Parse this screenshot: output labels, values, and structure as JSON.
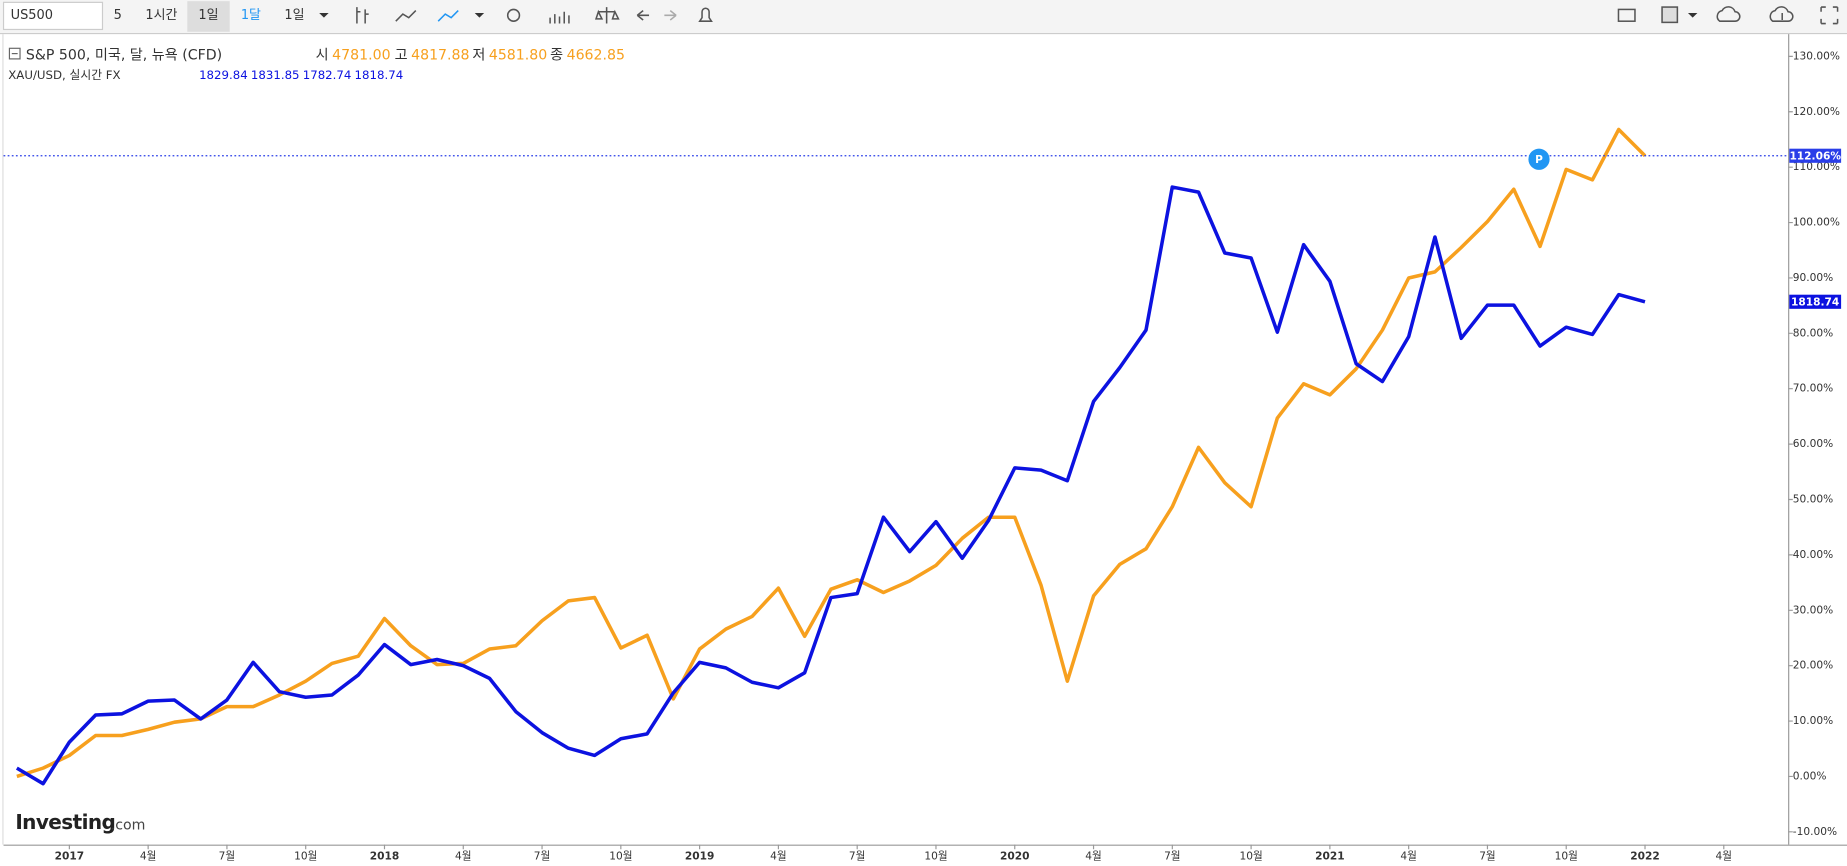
{
  "toolbar": {
    "symbol": "US500",
    "items": [
      "5",
      "1시간",
      "1일",
      "1달",
      "1일"
    ]
  },
  "legend": {
    "sp500": {
      "name": "S&P 500, 미국, 달, 뉴욕 (CFD)",
      "open_label": "시",
      "open": "4781.00",
      "high_label": "고",
      "high": "4817.88",
      "low_label": "저",
      "low": "4581.80",
      "close_label": "종",
      "close": "4662.85"
    },
    "gold": {
      "name": "XAU/USD, 실시간 FX",
      "open": "1829.84",
      "high": "1831.85",
      "low": "1782.74",
      "close": "1818.74"
    }
  },
  "logo": {
    "brand": "Investing",
    ".com": ".com"
  },
  "marker": "P",
  "chart_data": {
    "type": "line",
    "x": [
      "2016-11",
      "2016-12",
      "2017-01",
      "2017-02",
      "2017-03",
      "2017-04",
      "2017-05",
      "2017-06",
      "2017-07",
      "2017-08",
      "2017-09",
      "2017-10",
      "2017-11",
      "2017-12",
      "2018-01",
      "2018-02",
      "2018-03",
      "2018-04",
      "2018-05",
      "2018-06",
      "2018-07",
      "2018-08",
      "2018-09",
      "2018-10",
      "2018-11",
      "2018-12",
      "2019-01",
      "2019-02",
      "2019-03",
      "2019-04",
      "2019-05",
      "2019-06",
      "2019-07",
      "2019-08",
      "2019-09",
      "2019-10",
      "2019-11",
      "2019-12",
      "2020-01",
      "2020-02",
      "2020-03",
      "2020-04",
      "2020-05",
      "2020-06",
      "2020-07",
      "2020-08",
      "2020-09",
      "2020-10",
      "2020-11",
      "2020-12",
      "2021-01",
      "2021-02",
      "2021-03",
      "2021-04",
      "2021-05",
      "2021-06",
      "2021-07",
      "2021-08",
      "2021-09",
      "2021-10",
      "2021-11",
      "2021-12",
      "2022-01"
    ],
    "series": [
      {
        "name": "S&P 500",
        "color": "#f7a01e",
        "end_label": "112.06%",
        "values": [
          0,
          1.5,
          3.8,
          7.4,
          7.4,
          8.5,
          9.8,
          10.4,
          12.6,
          12.6,
          14.7,
          17.2,
          20.4,
          21.7,
          28.5,
          23.6,
          20.2,
          20.4,
          23,
          23.6,
          28.1,
          31.7,
          32.3,
          23.2,
          25.5,
          14,
          23,
          26.6,
          28.9,
          34,
          25.3,
          33.8,
          35.5,
          33.2,
          35.3,
          38.1,
          43,
          46.8,
          46.8,
          34.5,
          17.2,
          32.6,
          38.3,
          41.1,
          48.7,
          59.4,
          53,
          48.7,
          64.7,
          70.9,
          68.9,
          73.6,
          80.6,
          90,
          91.1,
          95.5,
          100.2,
          106,
          95.7,
          109.6,
          107.7,
          116.8,
          112.06
        ]
      },
      {
        "name": "XAU/USD",
        "color": "#0c12e0",
        "end_label": "1818.74",
        "values": [
          1.5,
          -1.3,
          6.2,
          11.1,
          11.3,
          13.6,
          13.8,
          10.4,
          13.8,
          20.6,
          15.3,
          14.3,
          14.7,
          18.3,
          23.8,
          20.2,
          21.1,
          20,
          17.7,
          11.7,
          7.9,
          5.1,
          3.8,
          6.8,
          7.7,
          15.1,
          20.6,
          19.6,
          17,
          16,
          18.7,
          32.3,
          33,
          46.8,
          40.6,
          46,
          39.4,
          46.2,
          55.7,
          55.3,
          53.4,
          67.7,
          73.8,
          80.6,
          106.4,
          105.5,
          94.5,
          93.6,
          80.2,
          96,
          89.4,
          74.5,
          71.3,
          79.4,
          97.4,
          79.1,
          85.1,
          85.1,
          77.7,
          81.1,
          79.8,
          87,
          85.7
        ]
      }
    ],
    "xlim": [
      "2016-10",
      "2022-06"
    ],
    "xticks": [
      {
        "value": "2017-01",
        "label": "2017"
      },
      {
        "value": "2017-04",
        "label": "4월"
      },
      {
        "value": "2017-07",
        "label": "7월"
      },
      {
        "value": "2017-10",
        "label": "10월"
      },
      {
        "value": "2018-01",
        "label": "2018"
      },
      {
        "value": "2018-04",
        "label": "4월"
      },
      {
        "value": "2018-07",
        "label": "7월"
      },
      {
        "value": "2018-10",
        "label": "10월"
      },
      {
        "value": "2019-01",
        "label": "2019"
      },
      {
        "value": "2019-04",
        "label": "4월"
      },
      {
        "value": "2019-07",
        "label": "7월"
      },
      {
        "value": "2019-10",
        "label": "10월"
      },
      {
        "value": "2020-01",
        "label": "2020"
      },
      {
        "value": "2020-04",
        "label": "4월"
      },
      {
        "value": "2020-07",
        "label": "7월"
      },
      {
        "value": "2020-10",
        "label": "10월"
      },
      {
        "value": "2021-01",
        "label": "2021"
      },
      {
        "value": "2021-04",
        "label": "4월"
      },
      {
        "value": "2021-07",
        "label": "7월"
      },
      {
        "value": "2021-10",
        "label": "10월"
      },
      {
        "value": "2022-01",
        "label": "2022"
      },
      {
        "value": "2022-04",
        "label": "4월"
      }
    ],
    "ylim": [
      -12.3,
      133.8
    ],
    "yticks": [
      {
        "value": -10,
        "label": "-10.00%"
      },
      {
        "value": 0,
        "label": "0.00%"
      },
      {
        "value": 10,
        "label": "10.00%"
      },
      {
        "value": 20,
        "label": "20.00%"
      },
      {
        "value": 30,
        "label": "30.00%"
      },
      {
        "value": 40,
        "label": "40.00%"
      },
      {
        "value": 50,
        "label": "50.00%"
      },
      {
        "value": 60,
        "label": "60.00%"
      },
      {
        "value": 70,
        "label": "70.00%"
      },
      {
        "value": 80,
        "label": "80.00%"
      },
      {
        "value": 90,
        "label": "90.00%"
      },
      {
        "value": 100,
        "label": "100.00%"
      },
      {
        "value": 110,
        "label": "110.00%"
      },
      {
        "value": 120,
        "label": "120.00%"
      },
      {
        "value": 130,
        "label": "130.00%"
      }
    ],
    "grid": false
  }
}
